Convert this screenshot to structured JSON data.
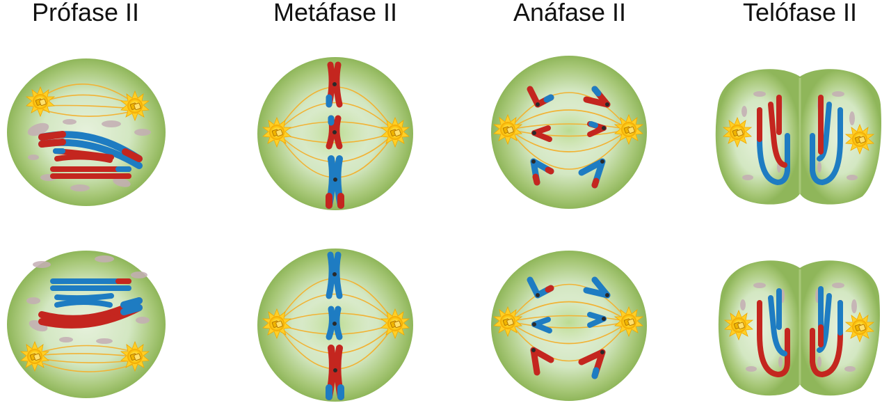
{
  "phases": [
    {
      "label": "Prófase II"
    },
    {
      "label": "Metáfase II"
    },
    {
      "label": "Anáfase II"
    },
    {
      "label": "Telófase II"
    }
  ],
  "colors": {
    "background": "#ffffff",
    "cytoplasm_edge": "#8fb65a",
    "cytoplasm_center": "#e6f1dc",
    "spindle": "#f2b233",
    "centrosome": "#ffd21f",
    "chromatid_red": "#c4261f",
    "chromatid_blue": "#1e7cc2",
    "nuclear_fragment": "#c4aeb4"
  },
  "icons": {
    "centrosome": "sun-burst-icon",
    "chromosome": "x-chromosome-icon"
  }
}
